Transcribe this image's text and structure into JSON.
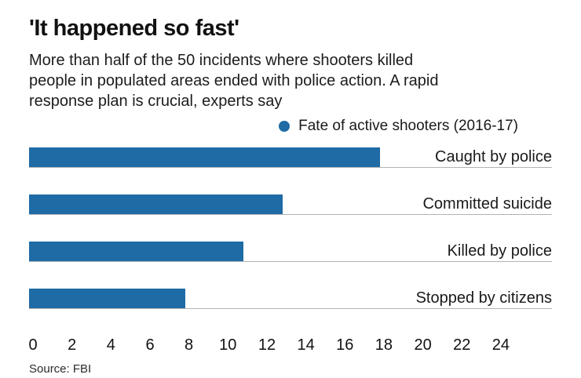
{
  "header": {
    "title": "'It happened so fast'",
    "subtitle_lines": [
      "More than half of the 50 incidents where shooters killed",
      "people in populated areas ended with police action. A rapid",
      "response plan is crucial, experts say"
    ]
  },
  "legend": {
    "label": "Fate of active shooters (2016-17)"
  },
  "chart_data": {
    "type": "bar",
    "orientation": "horizontal",
    "title": "'It happened so fast'",
    "series_label": "Fate of active shooters (2016-17)",
    "categories": [
      "Caught by police",
      "Committed suicide",
      "Killed by police",
      "Stopped by citizens"
    ],
    "values": [
      18,
      13,
      11,
      8
    ],
    "xlabel": "",
    "ylabel": "",
    "xlim": [
      0,
      26.8
    ],
    "x_ticks": [
      0,
      2,
      4,
      6,
      8,
      10,
      12,
      14,
      16,
      18,
      20,
      22,
      24
    ],
    "grid": false,
    "legend_position": "top-right",
    "bar_color": "#1e6ba5",
    "row_line_color": "#b3b3b3"
  },
  "footer": {
    "source": "Source: FBI"
  }
}
